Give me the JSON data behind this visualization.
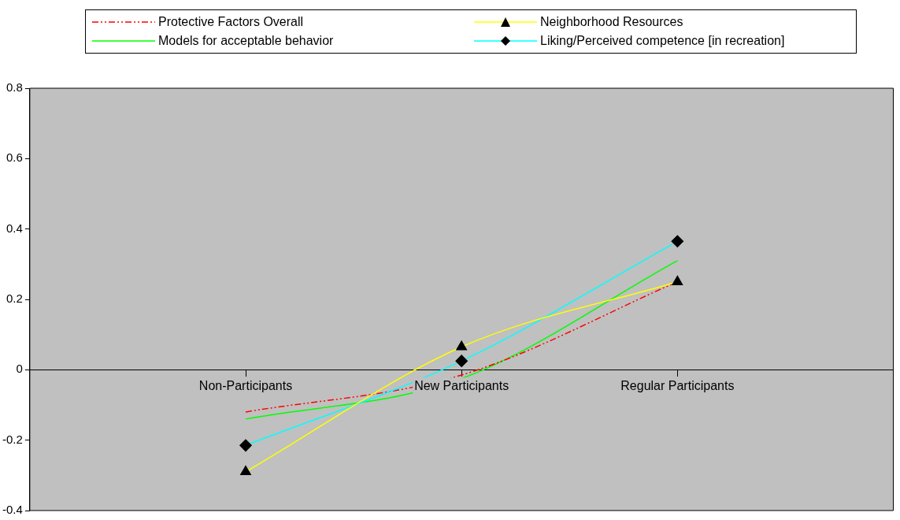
{
  "chart_data": {
    "type": "line",
    "categories": [
      "Non-Participants",
      "New Participants",
      "Regular Participants"
    ],
    "series": [
      {
        "name": "Protective Factors Overall",
        "color": "#ff0000",
        "values": [
          -0.12,
          -0.015,
          0.25
        ],
        "line_style": "dashed",
        "marker": "none"
      },
      {
        "name": "Neighborhood Resources",
        "color": "#ffff00",
        "values": [
          -0.29,
          0.065,
          0.25
        ],
        "line_style": "solid",
        "marker": "triangle"
      },
      {
        "name": "Models for acceptable behavior",
        "color": "#00ff00",
        "values": [
          -0.14,
          -0.025,
          0.31
        ],
        "line_style": "solid",
        "marker": "none"
      },
      {
        "name": "Liking/Perceived competence [in recreation]",
        "color": "#00ffff",
        "values": [
          -0.215,
          0.025,
          0.365
        ],
        "line_style": "solid",
        "marker": "diamond"
      }
    ],
    "ylim": [
      -0.4,
      0.8
    ],
    "yticks": [
      -0.4,
      -0.2,
      0,
      0.2,
      0.4,
      0.6,
      0.8
    ],
    "grid": false,
    "legend": "top"
  }
}
